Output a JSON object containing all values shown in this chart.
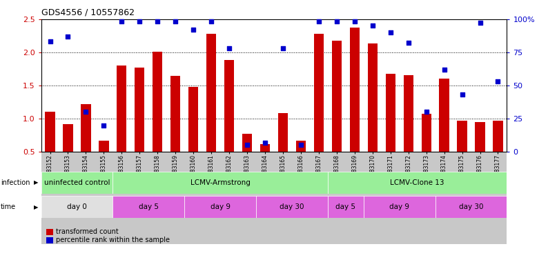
{
  "title": "GDS4556 / 10557862",
  "samples": [
    "GSM1083152",
    "GSM1083153",
    "GSM1083154",
    "GSM1083155",
    "GSM1083156",
    "GSM1083157",
    "GSM1083158",
    "GSM1083159",
    "GSM1083160",
    "GSM1083161",
    "GSM1083162",
    "GSM1083163",
    "GSM1083164",
    "GSM1083165",
    "GSM1083166",
    "GSM1083167",
    "GSM1083168",
    "GSM1083169",
    "GSM1083170",
    "GSM1083171",
    "GSM1083172",
    "GSM1083173",
    "GSM1083174",
    "GSM1083175",
    "GSM1083176",
    "GSM1083177"
  ],
  "red_values": [
    1.1,
    0.92,
    1.22,
    0.67,
    1.8,
    1.77,
    2.01,
    1.64,
    1.48,
    2.28,
    1.88,
    0.77,
    0.62,
    1.08,
    0.67,
    2.28,
    2.17,
    2.37,
    2.13,
    1.67,
    1.65,
    1.07,
    1.6,
    0.97,
    0.95,
    0.97
  ],
  "blue_values": [
    83,
    87,
    30,
    20,
    98,
    98,
    98,
    98,
    92,
    98,
    78,
    5,
    7,
    78,
    5,
    98,
    98,
    98,
    95,
    90,
    82,
    30,
    62,
    43,
    97,
    53
  ],
  "ylim_left": [
    0.5,
    2.5
  ],
  "ylim_right": [
    0,
    100
  ],
  "yticks_left": [
    0.5,
    1.0,
    1.5,
    2.0,
    2.5
  ],
  "yticks_right": [
    0,
    25,
    50,
    75,
    100
  ],
  "ytick_labels_right": [
    "0",
    "25",
    "50",
    "75",
    "100%"
  ],
  "bar_color": "#CC0000",
  "dot_color": "#0000CC",
  "left_tick_color": "#CC0000",
  "right_tick_color": "#0000CC",
  "infection_groups": [
    {
      "label": "uninfected control",
      "start": 0,
      "end": 4,
      "color": "#99EE99"
    },
    {
      "label": "LCMV-Armstrong",
      "start": 4,
      "end": 16,
      "color": "#99EE99"
    },
    {
      "label": "LCMV-Clone 13",
      "start": 16,
      "end": 26,
      "color": "#99EE99"
    }
  ],
  "time_groups": [
    {
      "label": "day 0",
      "start": 0,
      "end": 4,
      "color": "#E0E0E0"
    },
    {
      "label": "day 5",
      "start": 4,
      "end": 8,
      "color": "#DD66DD"
    },
    {
      "label": "day 9",
      "start": 8,
      "end": 12,
      "color": "#DD66DD"
    },
    {
      "label": "day 30",
      "start": 12,
      "end": 16,
      "color": "#DD66DD"
    },
    {
      "label": "day 5",
      "start": 16,
      "end": 18,
      "color": "#DD66DD"
    },
    {
      "label": "day 9",
      "start": 18,
      "end": 22,
      "color": "#DD66DD"
    },
    {
      "label": "day 30",
      "start": 22,
      "end": 26,
      "color": "#DD66DD"
    }
  ]
}
